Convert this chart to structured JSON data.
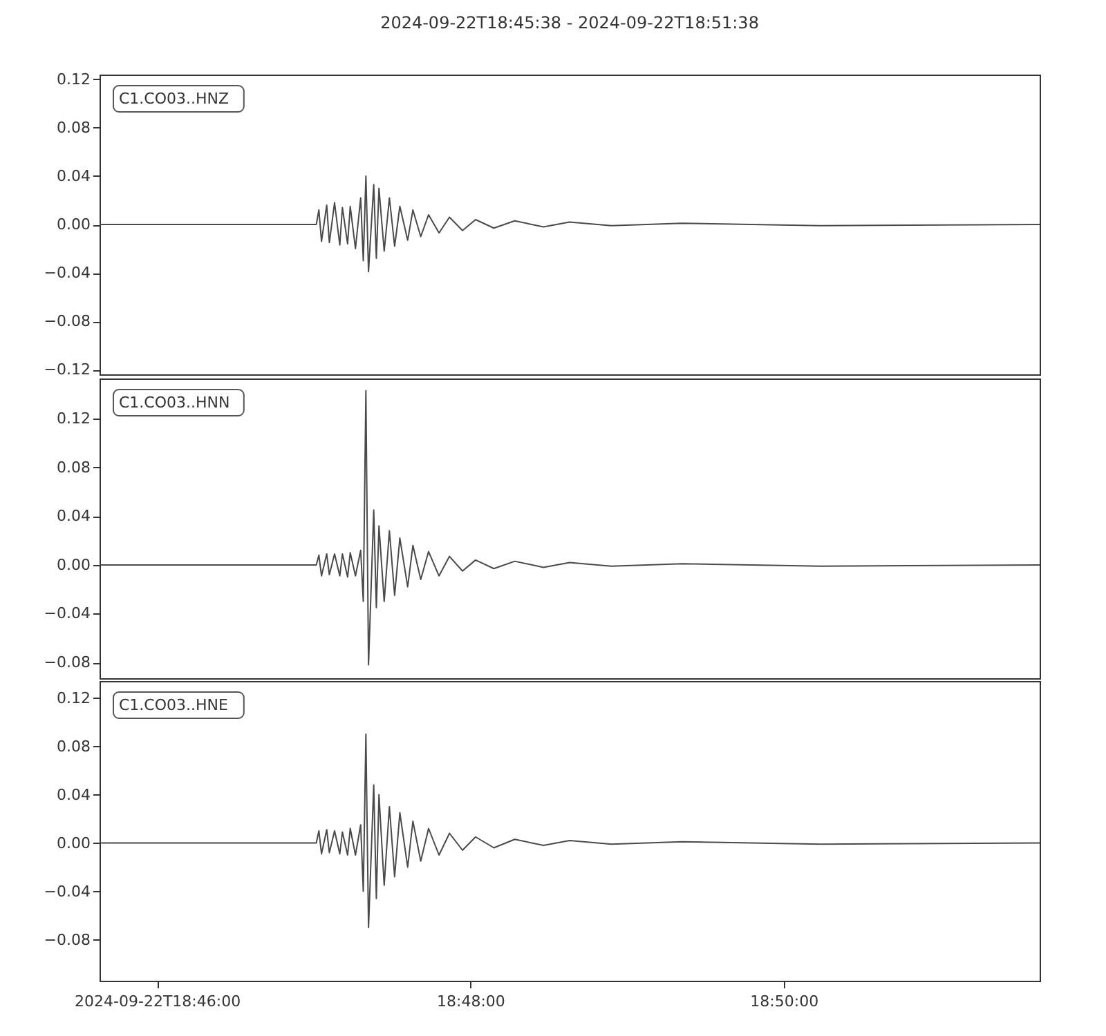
{
  "chart_data": [
    {
      "type": "line",
      "title": "2024-09-22T18:45:38  -  2024-09-22T18:51:38",
      "annotations": [
        "C1.CO03..HNZ"
      ],
      "tick_labels": "y",
      "grid": false,
      "x": [
        "2024-09-22T18:45:38",
        "2024-09-22T18:47:01",
        "2024-09-22T18:47:02",
        "2024-09-22T18:47:03",
        "2024-09-22T18:47:05",
        "2024-09-22T18:47:06",
        "2024-09-22T18:47:08",
        "2024-09-22T18:47:10",
        "2024-09-22T18:47:11",
        "2024-09-22T18:47:13",
        "2024-09-22T18:47:14",
        "2024-09-22T18:47:16",
        "2024-09-22T18:47:18",
        "2024-09-22T18:47:19",
        "2024-09-22T18:47:20",
        "2024-09-22T18:47:21",
        "2024-09-22T18:47:23",
        "2024-09-22T18:47:24",
        "2024-09-22T18:47:25",
        "2024-09-22T18:47:27",
        "2024-09-22T18:47:29",
        "2024-09-22T18:47:31",
        "2024-09-22T18:47:33",
        "2024-09-22T18:47:36",
        "2024-09-22T18:47:38",
        "2024-09-22T18:47:41",
        "2024-09-22T18:47:44",
        "2024-09-22T18:47:48",
        "2024-09-22T18:47:52",
        "2024-09-22T18:47:57",
        "2024-09-22T18:48:02",
        "2024-09-22T18:48:09",
        "2024-09-22T18:48:17",
        "2024-09-22T18:48:28",
        "2024-09-22T18:48:38",
        "2024-09-22T18:48:54",
        "2024-09-22T18:49:21",
        "2024-09-22T18:50:14",
        "2024-09-22T18:51:38"
      ],
      "series": [
        {
          "color": "#4a4a4a",
          "values": [
            0,
            0,
            0.012,
            -0.014,
            0.016,
            -0.015,
            0.018,
            -0.017,
            0.014,
            -0.016,
            0.015,
            -0.02,
            0.022,
            -0.03,
            0.04,
            -0.039,
            0.033,
            -0.028,
            0.03,
            -0.022,
            0.022,
            -0.018,
            0.015,
            -0.013,
            0.012,
            -0.01,
            0.008,
            -0.007,
            0.006,
            -0.005,
            0.004,
            -0.003,
            0.003,
            -0.002,
            0.002,
            -0.001,
            0.001,
            -0.001,
            0
          ]
        }
      ],
      "xlim": [
        "2024-09-22T18:45:38",
        "2024-09-22T18:51:38"
      ],
      "ylim": [
        -0.124,
        0.124
      ],
      "yticks": [
        0.12,
        0.08,
        0.04,
        {
          "value": 0,
          "label": "0.00"
        },
        {
          "value": -0.04,
          "label": "−0.04"
        },
        {
          "value": -0.08,
          "label": "−0.08"
        },
        {
          "value": -0.12,
          "label": "−0.12"
        }
      ]
    },
    {
      "type": "line",
      "annotations": [
        "C1.CO03..HNN"
      ],
      "tick_labels": "y",
      "grid": false,
      "x": [
        "2024-09-22T18:45:38",
        "2024-09-22T18:47:01",
        "2024-09-22T18:47:02",
        "2024-09-22T18:47:03",
        "2024-09-22T18:47:05",
        "2024-09-22T18:47:06",
        "2024-09-22T18:47:08",
        "2024-09-22T18:47:10",
        "2024-09-22T18:47:11",
        "2024-09-22T18:47:13",
        "2024-09-22T18:47:14",
        "2024-09-22T18:47:16",
        "2024-09-22T18:47:18",
        "2024-09-22T18:47:19",
        "2024-09-22T18:47:20",
        "2024-09-22T18:47:21",
        "2024-09-22T18:47:23",
        "2024-09-22T18:47:24",
        "2024-09-22T18:47:25",
        "2024-09-22T18:47:27",
        "2024-09-22T18:47:29",
        "2024-09-22T18:47:31",
        "2024-09-22T18:47:33",
        "2024-09-22T18:47:36",
        "2024-09-22T18:47:38",
        "2024-09-22T18:47:41",
        "2024-09-22T18:47:44",
        "2024-09-22T18:47:48",
        "2024-09-22T18:47:52",
        "2024-09-22T18:47:57",
        "2024-09-22T18:48:02",
        "2024-09-22T18:48:09",
        "2024-09-22T18:48:17",
        "2024-09-22T18:48:28",
        "2024-09-22T18:48:38",
        "2024-09-22T18:48:54",
        "2024-09-22T18:49:21",
        "2024-09-22T18:50:14",
        "2024-09-22T18:51:38"
      ],
      "series": [
        {
          "color": "#4a4a4a",
          "values": [
            0,
            0,
            0.008,
            -0.009,
            0.009,
            -0.008,
            0.009,
            -0.009,
            0.009,
            -0.01,
            0.01,
            -0.009,
            0.012,
            -0.03,
            0.143,
            -0.082,
            0.045,
            -0.035,
            0.032,
            -0.03,
            0.028,
            -0.025,
            0.022,
            -0.018,
            0.016,
            -0.012,
            0.011,
            -0.009,
            0.007,
            -0.005,
            0.004,
            -0.003,
            0.003,
            -0.002,
            0.002,
            -0.001,
            0.001,
            -0.001,
            0
          ]
        }
      ],
      "xlim": [
        "2024-09-22T18:45:38",
        "2024-09-22T18:51:38"
      ],
      "ylim": [
        -0.093,
        0.153
      ],
      "yticks": [
        0.12,
        0.08,
        0.04,
        {
          "value": 0,
          "label": "0.00"
        },
        {
          "value": -0.04,
          "label": "−0.04"
        },
        {
          "value": -0.08,
          "label": "−0.08"
        }
      ]
    },
    {
      "type": "line",
      "annotations": [
        "C1.CO03..HNE"
      ],
      "grid": false,
      "x": [
        "2024-09-22T18:45:38",
        "2024-09-22T18:47:01",
        "2024-09-22T18:47:02",
        "2024-09-22T18:47:03",
        "2024-09-22T18:47:05",
        "2024-09-22T18:47:06",
        "2024-09-22T18:47:08",
        "2024-09-22T18:47:10",
        "2024-09-22T18:47:11",
        "2024-09-22T18:47:13",
        "2024-09-22T18:47:14",
        "2024-09-22T18:47:16",
        "2024-09-22T18:47:18",
        "2024-09-22T18:47:19",
        "2024-09-22T18:47:20",
        "2024-09-22T18:47:21",
        "2024-09-22T18:47:23",
        "2024-09-22T18:47:24",
        "2024-09-22T18:47:25",
        "2024-09-22T18:47:27",
        "2024-09-22T18:47:29",
        "2024-09-22T18:47:31",
        "2024-09-22T18:47:33",
        "2024-09-22T18:47:36",
        "2024-09-22T18:47:38",
        "2024-09-22T18:47:41",
        "2024-09-22T18:47:44",
        "2024-09-22T18:47:48",
        "2024-09-22T18:47:52",
        "2024-09-22T18:47:57",
        "2024-09-22T18:48:02",
        "2024-09-22T18:48:09",
        "2024-09-22T18:48:17",
        "2024-09-22T18:48:28",
        "2024-09-22T18:48:38",
        "2024-09-22T18:48:54",
        "2024-09-22T18:49:21",
        "2024-09-22T18:50:14",
        "2024-09-22T18:51:38"
      ],
      "series": [
        {
          "color": "#4a4a4a",
          "values": [
            0,
            0,
            0.01,
            -0.009,
            0.011,
            -0.008,
            0.01,
            -0.009,
            0.009,
            -0.01,
            0.012,
            -0.01,
            0.015,
            -0.04,
            0.09,
            -0.07,
            0.048,
            -0.046,
            0.04,
            -0.035,
            0.03,
            -0.028,
            0.025,
            -0.02,
            0.018,
            -0.015,
            0.012,
            -0.01,
            0.008,
            -0.006,
            0.005,
            -0.004,
            0.003,
            -0.002,
            0.002,
            -0.001,
            0.001,
            -0.001,
            0
          ]
        }
      ],
      "xlim": [
        "2024-09-22T18:45:38",
        "2024-09-22T18:51:38"
      ],
      "ylim": [
        -0.114,
        0.134
      ],
      "xticks": [
        {
          "value": "2024-09-22T18:46:00",
          "label": "2024-09-22T18:46:00"
        },
        {
          "value": "2024-09-22T18:48:00",
          "label": "18:48:00"
        },
        {
          "value": "2024-09-22T18:50:00",
          "label": "18:50:00"
        }
      ],
      "yticks": [
        0.12,
        0.08,
        0.04,
        {
          "value": 0,
          "label": "0.00"
        },
        {
          "value": -0.04,
          "label": "−0.04"
        },
        {
          "value": -0.08,
          "label": "−0.08"
        }
      ]
    }
  ]
}
